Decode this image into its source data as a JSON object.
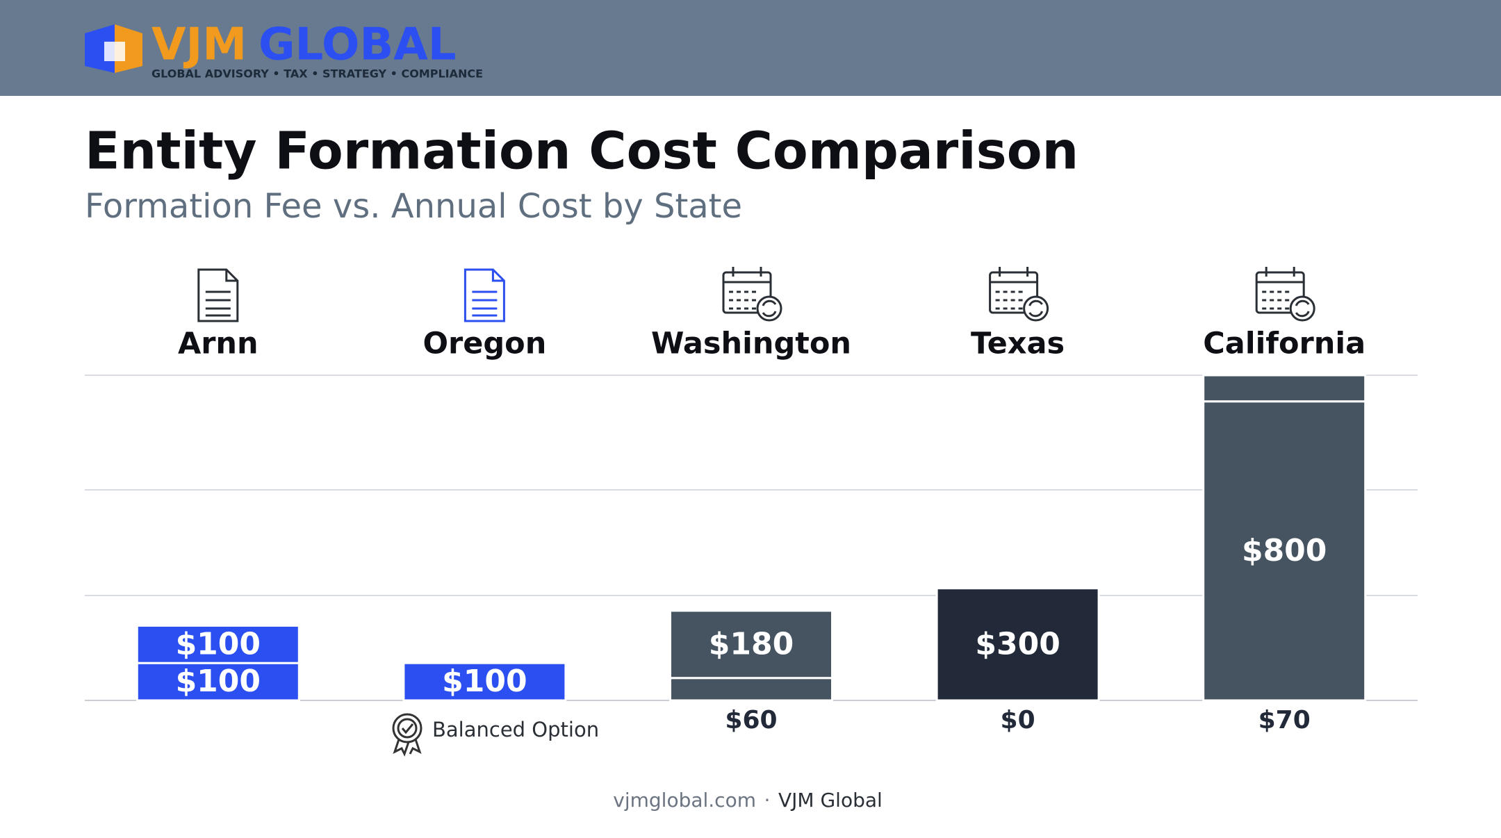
{
  "header": {
    "logo_primary": "VJM",
    "logo_secondary": "GLOBAL",
    "tagline": "GLOBAL ADVISORY • TAX • STRATEGY • COMPLIANCE"
  },
  "chart_data": {
    "type": "stacked_bar",
    "title": "Entity Formation Cost Comparison",
    "subtitle": "Formation Fee vs. Annual Cost by State",
    "categories": [
      "Arnn",
      "Oregon",
      "Washington",
      "Texas",
      "California"
    ],
    "colors": [
      "#2b4ff0",
      "#2b4ff0",
      "#465461",
      "#222a3a",
      "#465461"
    ],
    "series": [
      {
        "values": [
          100,
          100,
          60,
          0,
          800
        ],
        "value_labels": [
          "$100",
          "$100",
          "$60",
          "$0",
          "$800"
        ]
      },
      {
        "values": [
          100,
          null,
          180,
          300,
          70
        ],
        "value_labels": [
          "$100",
          null,
          "$180",
          "$300",
          "$70"
        ]
      }
    ],
    "ylim": [
      0,
      870
    ],
    "annotation": "Balanced Option"
  },
  "footer": {
    "site": "vjmglobal.com",
    "brand": "VJM Global"
  }
}
